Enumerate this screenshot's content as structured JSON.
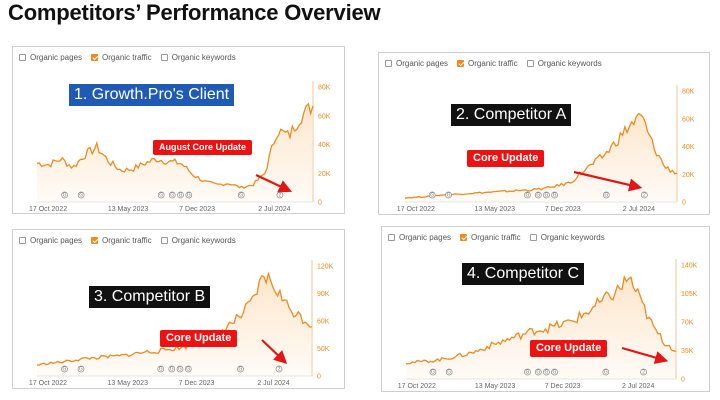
{
  "page_title": "Competitors’ Performance Overview",
  "legend": {
    "organic_pages": "Organic pages",
    "organic_traffic": "Organic traffic",
    "organic_keywords": "Organic keywords"
  },
  "colors": {
    "line": "#f08a1d",
    "area": "#fde6cc",
    "client_badge": "#1f5bb5",
    "competitor_badge": "#111111",
    "update_badge": "#ee1111",
    "arrow": "#e31515"
  },
  "panels": [
    {
      "id": "client",
      "badge": "1. Growth.Pro's Client",
      "badge_color": "#1f5bb5",
      "update_label": "August Core Update",
      "update_font_size": 9,
      "x_ticks": [
        "17 Oct 2022",
        "13 May 2023",
        "7 Dec 2023",
        "2 Jul 2024"
      ],
      "y_ticks": [
        "0",
        "20K",
        "40K",
        "60K",
        "80K"
      ],
      "event_markers": [
        "G",
        "G",
        "G",
        "G",
        "G",
        "G",
        "G",
        "2"
      ]
    },
    {
      "id": "competitor_a",
      "badge": "2. Competitor A",
      "badge_color": "#111111",
      "update_label": "Core Update",
      "update_font_size": 11,
      "x_ticks": [
        "17 Oct 2022",
        "13 May 2023",
        "7 Dec 2023",
        "2 Jul 2024"
      ],
      "y_ticks": [
        "0",
        "20K",
        "40K",
        "60K",
        "80K"
      ],
      "event_markers": [
        "G",
        "G",
        "G",
        "G",
        "G",
        "G",
        "G",
        "2"
      ]
    },
    {
      "id": "competitor_b",
      "badge": "3. Competitor B",
      "badge_color": "#111111",
      "update_label": "Core Update",
      "update_font_size": 11,
      "x_ticks": [
        "17 Oct 2022",
        "13 May 2023",
        "7 Dec 2023",
        "2 Jul 2024"
      ],
      "y_ticks": [
        "0",
        "50K",
        "60K",
        "90K",
        "120K"
      ],
      "event_markers": [
        "G",
        "G",
        "G",
        "G",
        "G",
        "G",
        "G",
        "2"
      ]
    },
    {
      "id": "competitor_c",
      "badge": "4. Competitor C",
      "badge_color": "#111111",
      "update_label": "Core Update",
      "update_font_size": 11,
      "x_ticks": [
        "17 Oct 2022",
        "13 May 2023",
        "7 Dec 2023",
        "2 Jul 2024"
      ],
      "y_ticks": [
        "0",
        "35K",
        "70K",
        "105K",
        "140K"
      ],
      "event_markers": [
        "G",
        "G",
        "G",
        "G",
        "G",
        "G",
        "G",
        "2"
      ]
    }
  ],
  "chart_data": [
    {
      "type": "area",
      "x": [
        "2022-10",
        "2022-11",
        "2022-12",
        "2023-01",
        "2023-02",
        "2023-03",
        "2023-04",
        "2023-05",
        "2023-06",
        "2023-07",
        "2023-08",
        "2023-09",
        "2023-10",
        "2023-11",
        "2023-12",
        "2024-01",
        "2024-02",
        "2024-03",
        "2024-04",
        "2024-05",
        "2024-06",
        "2024-07",
        "2024-08",
        "2024-09"
      ],
      "series": [
        {
          "name": "Organic traffic",
          "values": [
            27000,
            26000,
            30000,
            24000,
            33000,
            38000,
            28000,
            22000,
            23000,
            27000,
            30000,
            28000,
            27000,
            19000,
            14000,
            12000,
            13000,
            10000,
            12000,
            20000,
            50000,
            46000,
            60000,
            67000
          ]
        }
      ],
      "ylim": [
        0,
        80000
      ]
    },
    {
      "type": "area",
      "x": [
        "2022-10",
        "2022-11",
        "2022-12",
        "2023-01",
        "2023-02",
        "2023-03",
        "2023-04",
        "2023-05",
        "2023-06",
        "2023-07",
        "2023-08",
        "2023-09",
        "2023-10",
        "2023-11",
        "2023-12",
        "2024-01",
        "2024-02",
        "2024-03",
        "2024-04",
        "2024-05",
        "2024-06",
        "2024-07",
        "2024-08",
        "2024-09"
      ],
      "series": [
        {
          "name": "Organic traffic",
          "values": [
            3000,
            3500,
            4000,
            5000,
            5500,
            6000,
            6500,
            7000,
            7500,
            8000,
            8500,
            9000,
            10000,
            12000,
            14000,
            22000,
            28000,
            35000,
            45000,
            55000,
            62000,
            40000,
            25000,
            21000
          ]
        }
      ],
      "ylim": [
        0,
        80000
      ]
    },
    {
      "type": "area",
      "x": [
        "2022-10",
        "2022-11",
        "2022-12",
        "2023-01",
        "2023-02",
        "2023-03",
        "2023-04",
        "2023-05",
        "2023-06",
        "2023-07",
        "2023-08",
        "2023-09",
        "2023-10",
        "2023-11",
        "2023-12",
        "2024-01",
        "2024-02",
        "2024-03",
        "2024-04",
        "2024-05",
        "2024-06",
        "2024-07",
        "2024-08",
        "2024-09"
      ],
      "series": [
        {
          "name": "Organic traffic",
          "values": [
            12000,
            14000,
            15000,
            17000,
            19000,
            20000,
            21000,
            22000,
            24000,
            26000,
            27000,
            29000,
            31000,
            34000,
            38000,
            45000,
            55000,
            65000,
            80000,
            110000,
            95000,
            75000,
            65000,
            55000
          ]
        }
      ],
      "ylim": [
        0,
        120000
      ]
    },
    {
      "type": "area",
      "x": [
        "2022-10",
        "2022-11",
        "2022-12",
        "2023-01",
        "2023-02",
        "2023-03",
        "2023-04",
        "2023-05",
        "2023-06",
        "2023-07",
        "2023-08",
        "2023-09",
        "2023-10",
        "2023-11",
        "2023-12",
        "2024-01",
        "2024-02",
        "2024-03",
        "2024-04",
        "2024-05",
        "2024-06",
        "2024-07",
        "2024-08",
        "2024-09"
      ],
      "series": [
        {
          "name": "Organic traffic",
          "values": [
            20000,
            21000,
            22000,
            24000,
            27000,
            30000,
            34000,
            40000,
            45000,
            50000,
            55000,
            60000,
            62000,
            66000,
            70000,
            78000,
            88000,
            98000,
            108000,
            125000,
            95000,
            65000,
            45000,
            35000
          ]
        }
      ],
      "ylim": [
        0,
        140000
      ]
    }
  ]
}
